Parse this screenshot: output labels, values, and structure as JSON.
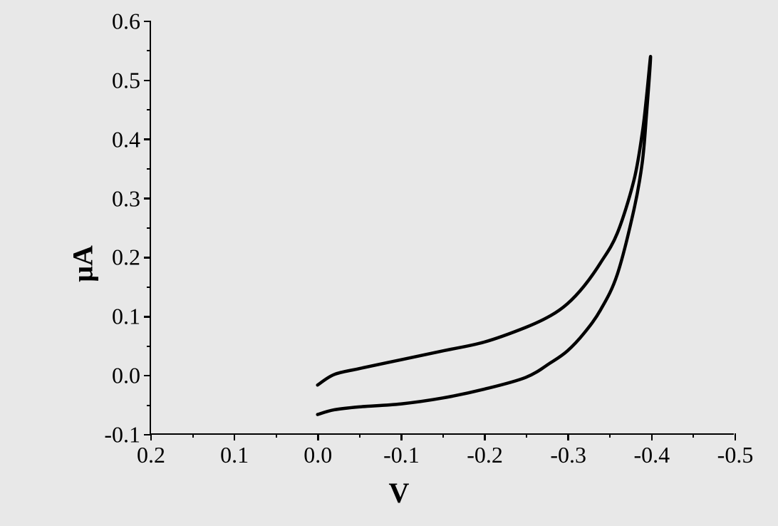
{
  "chart": {
    "type": "line",
    "xlabel": "V",
    "ylabel": "μA",
    "label_fontsize": 40,
    "tick_fontsize": 32,
    "background_color": "#e8e8e8",
    "line_color": "#000000",
    "line_width": 4.5,
    "axis_color": "#000000",
    "axis_width": 2.5,
    "xlim": [
      0.2,
      -0.5
    ],
    "ylim": [
      -0.1,
      0.6
    ],
    "xticks": [
      0.2,
      0.1,
      0.0,
      -0.1,
      -0.2,
      -0.3,
      -0.4,
      -0.5
    ],
    "xtick_labels": [
      "0.2",
      "0.1",
      "0.0",
      "-0.1",
      "-0.2",
      "-0.3",
      "-0.4",
      "-0.5"
    ],
    "yticks": [
      -0.1,
      0.0,
      0.1,
      0.2,
      0.3,
      0.4,
      0.5,
      0.6
    ],
    "ytick_labels": [
      "-0.1",
      "0.0",
      "0.1",
      "0.2",
      "0.3",
      "0.4",
      "0.5",
      "0.6"
    ],
    "x_minor_ticks": [
      0.15,
      0.05,
      -0.05,
      -0.15,
      -0.25,
      -0.35,
      -0.45
    ],
    "y_minor_ticks": [
      -0.05,
      0.05,
      0.15,
      0.25,
      0.35,
      0.45,
      0.55
    ],
    "series": [
      {
        "name": "cv_loop",
        "x": [
          0.0,
          -0.02,
          -0.05,
          -0.1,
          -0.15,
          -0.2,
          -0.25,
          -0.28,
          -0.3,
          -0.32,
          -0.34,
          -0.36,
          -0.38,
          -0.39,
          -0.395,
          -0.4,
          -0.395,
          -0.39,
          -0.38,
          -0.36,
          -0.34,
          -0.32,
          -0.3,
          -0.28,
          -0.25,
          -0.2,
          -0.15,
          -0.1,
          -0.05,
          -0.02,
          0.0
        ],
        "y": [
          -0.018,
          0.0,
          0.01,
          0.025,
          0.04,
          0.055,
          0.08,
          0.1,
          0.12,
          0.15,
          0.19,
          0.24,
          0.33,
          0.41,
          0.47,
          0.54,
          0.44,
          0.36,
          0.28,
          0.17,
          0.11,
          0.07,
          0.04,
          0.02,
          -0.005,
          -0.025,
          -0.04,
          -0.05,
          -0.055,
          -0.06,
          -0.068
        ]
      }
    ]
  }
}
